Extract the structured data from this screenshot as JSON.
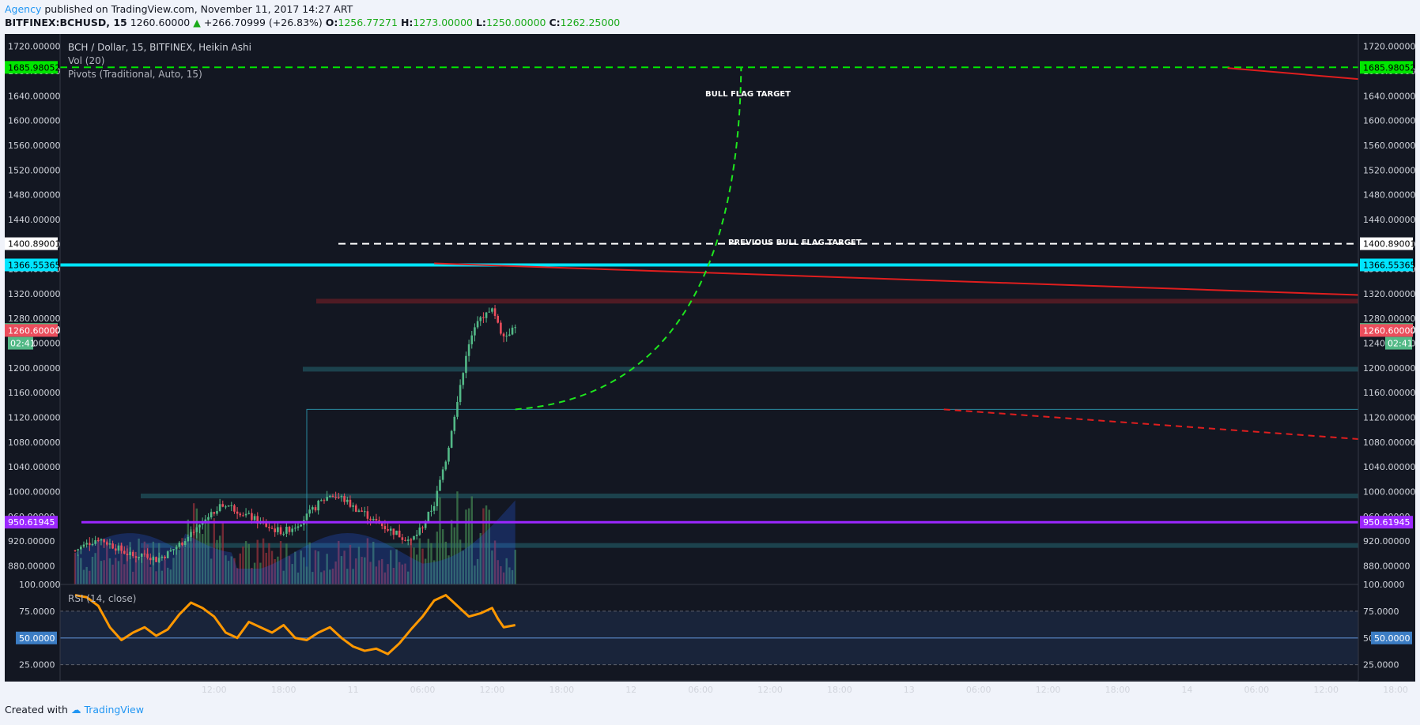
{
  "header": {
    "author": "Agency",
    "published_text": " published on TradingView.com, November 11, 2017 14:27 ART",
    "symbol": "BITFINEX:BCHUSD, 15",
    "last": "1260.60000",
    "change": "+266.70999 (+26.83%)",
    "o_label": "O:",
    "o_value": "1256.77271",
    "h_label": "H:",
    "h_value": "1273.00000",
    "l_label": "L:",
    "l_value": "1250.00000",
    "c_label": "C:",
    "c_value": "1262.25000"
  },
  "legend": {
    "line1": "BCH / Dollar, 15, BITFINEX, Heikin Ashi",
    "line2": "Vol (20)",
    "line3": "Pivots (Traditional, Auto, 15)",
    "rsi": "RSI (14, close)"
  },
  "annotations": {
    "bull_flag": "BULL FLAG TARGET",
    "prev_bull_flag": "PREVIOUS BULL FLAG TARGET"
  },
  "footer": {
    "created_with": "Created with",
    "brand": "TradingView"
  },
  "colors": {
    "background": "#131722",
    "up": "#53b987",
    "down": "#eb4d5c",
    "cyan": "#00e5ff",
    "target": "#00e600",
    "purple": "#9c27ff",
    "rsi": "#ff9800"
  },
  "chart_data": {
    "type": "candlestick",
    "price_axis_ticks": [
      "1720.00000",
      "1680.00000",
      "1640.00000",
      "1600.00000",
      "1560.00000",
      "1520.00000",
      "1480.00000",
      "1440.00000",
      "1400.00000",
      "1360.00000",
      "1320.00000",
      "1280.00000",
      "1240.00000",
      "1200.00000",
      "1160.00000",
      "1120.00000",
      "1080.00000",
      "1040.00000",
      "1000.00000",
      "960.00000",
      "920.00000",
      "880.00000"
    ],
    "time_axis_ticks": [
      "12:00",
      "18:00",
      "11",
      "06:00",
      "12:00",
      "18:00",
      "12",
      "06:00",
      "12:00",
      "18:00",
      "13",
      "06:00",
      "12:00",
      "18:00",
      "14",
      "06:00",
      "12:00",
      "18:00"
    ],
    "time_axis_hours": [
      12,
      18,
      24,
      30,
      36,
      42,
      48,
      54,
      60,
      66,
      72,
      78,
      84,
      90,
      96,
      102,
      108,
      114
    ],
    "rsi_axis_ticks": [
      "100.0000",
      "75.0000",
      "50.0000",
      "25.0000"
    ],
    "price_ylim": [
      850,
      1740
    ],
    "rsi_ylim": [
      10,
      100
    ],
    "levels": {
      "bull_flag_target": {
        "value": 1685.98052,
        "label": "1685.98052"
      },
      "previous_bull_flag_target": {
        "value": 1400.89001,
        "label": "1400.89001"
      },
      "resistance": {
        "value": 1366.55365,
        "label": "1366.55365"
      },
      "close": {
        "value": 1262.25,
        "label": "1262.25000"
      },
      "last": {
        "value": 1260.6,
        "label": "1260.60000"
      },
      "countdown": "02:41",
      "support": {
        "value": 950.61945,
        "label": "950.61945"
      },
      "rsi_mid": {
        "value": 50,
        "label": "50.0000"
      }
    },
    "zones": [
      1308,
      1198,
      993,
      913
    ],
    "box": {
      "top": 1133,
      "start_hour": 20
    },
    "trendlines": [
      {
        "color": "red",
        "style": "solid",
        "from": [
          31,
          1369
        ],
        "to": [
          118,
          1318
        ]
      },
      {
        "color": "red",
        "style": "solid",
        "from": [
          99.5,
          1685
        ],
        "to": [
          118,
          1667
        ]
      },
      {
        "color": "red",
        "style": "dashed",
        "from": [
          75,
          1133
        ],
        "to": [
          118,
          1085
        ]
      }
    ],
    "projection": {
      "type": "parabolic",
      "from": [
        38,
        1133
      ],
      "to": [
        57.5,
        1685
      ]
    },
    "price_path": [
      [
        0,
        905
      ],
      [
        1,
        915
      ],
      [
        2,
        925
      ],
      [
        3,
        915
      ],
      [
        4,
        905
      ],
      [
        5,
        895
      ],
      [
        6,
        900
      ],
      [
        7,
        890
      ],
      [
        8,
        900
      ],
      [
        9,
        915
      ],
      [
        10,
        930
      ],
      [
        11,
        950
      ],
      [
        12,
        970
      ],
      [
        13,
        980
      ],
      [
        14,
        970
      ],
      [
        15,
        960
      ],
      [
        16,
        950
      ],
      [
        17,
        940
      ],
      [
        18,
        935
      ],
      [
        19,
        945
      ],
      [
        20,
        960
      ],
      [
        21,
        980
      ],
      [
        22,
        995
      ],
      [
        23,
        990
      ],
      [
        24,
        975
      ],
      [
        25,
        965
      ],
      [
        26,
        950
      ],
      [
        27,
        940
      ],
      [
        28,
        930
      ],
      [
        29,
        920
      ],
      [
        30,
        945
      ],
      [
        31,
        980
      ],
      [
        32,
        1050
      ],
      [
        33,
        1150
      ],
      [
        34,
        1240
      ],
      [
        35,
        1280
      ],
      [
        36,
        1300
      ],
      [
        36.5,
        1270
      ],
      [
        37,
        1250
      ],
      [
        38,
        1265
      ]
    ],
    "rsi_path": [
      [
        0,
        90
      ],
      [
        1,
        88
      ],
      [
        2,
        80
      ],
      [
        3,
        60
      ],
      [
        4,
        48
      ],
      [
        5,
        55
      ],
      [
        6,
        60
      ],
      [
        7,
        52
      ],
      [
        8,
        58
      ],
      [
        9,
        72
      ],
      [
        10,
        83
      ],
      [
        11,
        78
      ],
      [
        12,
        70
      ],
      [
        13,
        55
      ],
      [
        14,
        50
      ],
      [
        15,
        65
      ],
      [
        16,
        60
      ],
      [
        17,
        55
      ],
      [
        18,
        62
      ],
      [
        19,
        50
      ],
      [
        20,
        48
      ],
      [
        21,
        55
      ],
      [
        22,
        60
      ],
      [
        23,
        50
      ],
      [
        24,
        42
      ],
      [
        25,
        38
      ],
      [
        26,
        40
      ],
      [
        27,
        35
      ],
      [
        28,
        45
      ],
      [
        29,
        58
      ],
      [
        30,
        70
      ],
      [
        31,
        85
      ],
      [
        32,
        90
      ],
      [
        33,
        80
      ],
      [
        34,
        70
      ],
      [
        35,
        73
      ],
      [
        36,
        78
      ],
      [
        36.5,
        68
      ],
      [
        37,
        60
      ],
      [
        38,
        62
      ]
    ]
  }
}
